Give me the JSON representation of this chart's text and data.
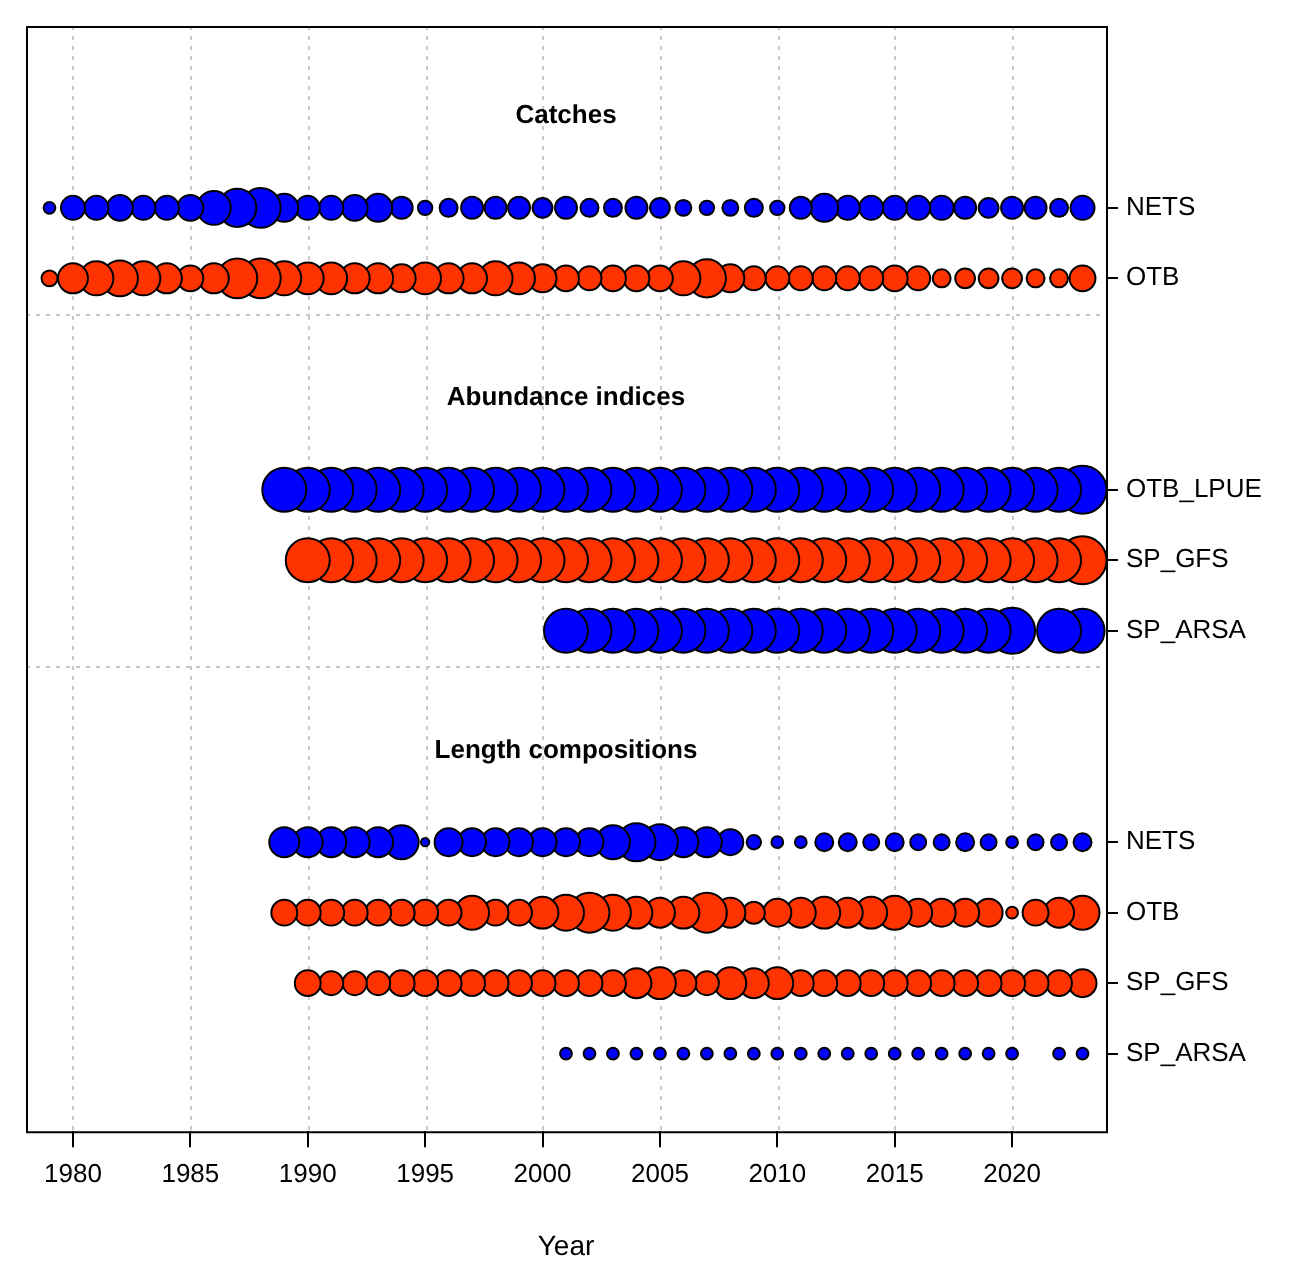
{
  "chart_data": {
    "type": "bubble",
    "orientation": "horizontal",
    "xlabel": "Year",
    "xlim": [
      1978,
      2024
    ],
    "xticks": [
      1980,
      1985,
      1990,
      1995,
      2000,
      2005,
      2010,
      2015,
      2020
    ],
    "grid": "x",
    "marker": "circle",
    "categories": [
      null,
      null,
      "NETS",
      "OTB",
      null,
      null,
      "OTB_LPUE",
      "SP_GFS",
      "SP_ARSA",
      null,
      null,
      "NETS",
      "OTB",
      "SP_GFS",
      "SP_ARSA"
    ],
    "annotations": [
      "Catches",
      "Abundance indices",
      "Length compositions"
    ],
    "series": [
      {
        "values": [
          null,
          null,
          1979,
          1979,
          null,
          null,
          null,
          null,
          null,
          null,
          null,
          null,
          null,
          null,
          null
        ],
        "sizes": [
          null,
          null,
          0.06,
          0.11,
          null,
          null,
          null,
          null,
          null,
          null,
          null,
          null,
          null,
          null,
          null
        ],
        "colors": [
          null,
          null,
          "#0000ff",
          "#ff3300",
          null,
          null,
          null,
          null,
          null,
          null,
          null,
          null,
          null,
          null,
          null
        ]
      },
      {
        "values": [
          null,
          null,
          1980,
          1980,
          null,
          null,
          null,
          null,
          null,
          null,
          null,
          null,
          null,
          null,
          null
        ],
        "sizes": [
          null,
          null,
          0.25,
          0.39,
          null,
          null,
          null,
          null,
          null,
          null,
          null,
          null,
          null,
          null,
          null
        ],
        "colors": [
          null,
          null,
          "#0000ff",
          "#ff3300",
          null,
          null,
          null,
          null,
          null,
          null,
          null,
          null,
          null,
          null,
          null
        ]
      },
      {
        "values": [
          null,
          null,
          1981,
          1981,
          null,
          null,
          null,
          null,
          null,
          null,
          null,
          null,
          null,
          null,
          null
        ],
        "sizes": [
          null,
          null,
          0.25,
          0.5,
          null,
          null,
          null,
          null,
          null,
          null,
          null,
          null,
          null,
          null,
          null
        ],
        "colors": [
          null,
          null,
          "#0000ff",
          "#ff3300",
          null,
          null,
          null,
          null,
          null,
          null,
          null,
          null,
          null,
          null,
          null
        ]
      },
      {
        "values": [
          null,
          null,
          1982,
          1982,
          null,
          null,
          null,
          null,
          null,
          null,
          null,
          null,
          null,
          null,
          null
        ],
        "sizes": [
          null,
          null,
          0.29,
          0.56,
          null,
          null,
          null,
          null,
          null,
          null,
          null,
          null,
          null,
          null,
          null
        ],
        "colors": [
          null,
          null,
          "#0000ff",
          "#ff3300",
          null,
          null,
          null,
          null,
          null,
          null,
          null,
          null,
          null,
          null,
          null
        ]
      },
      {
        "values": [
          null,
          null,
          1983,
          1983,
          null,
          null,
          null,
          null,
          null,
          null,
          null,
          null,
          null,
          null,
          null
        ],
        "sizes": [
          null,
          null,
          0.25,
          0.5,
          null,
          null,
          null,
          null,
          null,
          null,
          null,
          null,
          null,
          null,
          null
        ],
        "colors": [
          null,
          null,
          "#0000ff",
          "#ff3300",
          null,
          null,
          null,
          null,
          null,
          null,
          null,
          null,
          null,
          null,
          null
        ]
      },
      {
        "values": [
          null,
          null,
          1984,
          1984,
          null,
          null,
          null,
          null,
          null,
          null,
          null,
          null,
          null,
          null,
          null
        ],
        "sizes": [
          null,
          null,
          0.25,
          0.39,
          null,
          null,
          null,
          null,
          null,
          null,
          null,
          null,
          null,
          null,
          null
        ],
        "colors": [
          null,
          null,
          "#0000ff",
          "#ff3300",
          null,
          null,
          null,
          null,
          null,
          null,
          null,
          null,
          null,
          null,
          null
        ]
      },
      {
        "values": [
          null,
          null,
          1985,
          1985,
          null,
          null,
          null,
          null,
          null,
          null,
          null,
          null,
          null,
          null,
          null
        ],
        "sizes": [
          null,
          null,
          0.29,
          0.29,
          null,
          null,
          null,
          null,
          null,
          null,
          null,
          null,
          null,
          null,
          null
        ],
        "colors": [
          null,
          null,
          "#0000ff",
          "#ff3300",
          null,
          null,
          null,
          null,
          null,
          null,
          null,
          null,
          null,
          null,
          null
        ]
      },
      {
        "values": [
          null,
          null,
          1986,
          1986,
          null,
          null,
          null,
          null,
          null,
          null,
          null,
          null,
          null,
          null,
          null
        ],
        "sizes": [
          null,
          null,
          0.5,
          0.39,
          null,
          null,
          null,
          null,
          null,
          null,
          null,
          null,
          null,
          null,
          null
        ],
        "colors": [
          null,
          null,
          "#0000ff",
          "#ff3300",
          null,
          null,
          null,
          null,
          null,
          null,
          null,
          null,
          null,
          null,
          null
        ]
      },
      {
        "values": [
          null,
          null,
          1987,
          1987,
          null,
          null,
          null,
          null,
          null,
          null,
          null,
          null,
          null,
          null,
          null
        ],
        "sizes": [
          null,
          null,
          0.63,
          0.69,
          null,
          null,
          null,
          null,
          null,
          null,
          null,
          null,
          null,
          null,
          null
        ],
        "colors": [
          null,
          null,
          "#0000ff",
          "#ff3300",
          null,
          null,
          null,
          null,
          null,
          null,
          null,
          null,
          null,
          null,
          null
        ]
      },
      {
        "values": [
          null,
          null,
          1988,
          1988,
          null,
          null,
          null,
          null,
          null,
          null,
          null,
          null,
          null,
          null,
          null
        ],
        "sizes": [
          null,
          null,
          0.69,
          0.69,
          null,
          null,
          null,
          null,
          null,
          null,
          null,
          null,
          null,
          null,
          null
        ],
        "colors": [
          null,
          null,
          "#0000ff",
          "#ff3300",
          null,
          null,
          null,
          null,
          null,
          null,
          null,
          null,
          null,
          null,
          null
        ]
      },
      {
        "values": [
          null,
          null,
          1989,
          1989,
          null,
          null,
          1989,
          null,
          null,
          null,
          null,
          1989,
          1989,
          null,
          null
        ],
        "sizes": [
          null,
          null,
          0.34,
          0.5,
          null,
          null,
          0.84,
          null,
          null,
          null,
          null,
          0.39,
          0.29,
          null,
          null
        ],
        "colors": [
          null,
          null,
          "#0000ff",
          "#ff3300",
          null,
          null,
          "#0000ff",
          null,
          null,
          null,
          null,
          "#0000ff",
          "#ff3300",
          null,
          null
        ]
      },
      {
        "values": [
          null,
          null,
          1990,
          1990,
          null,
          null,
          1990,
          1990,
          null,
          null,
          null,
          1990,
          1990,
          1990,
          null
        ],
        "sizes": [
          null,
          null,
          0.25,
          0.44,
          null,
          null,
          0.84,
          0.84,
          null,
          null,
          null,
          0.39,
          0.29,
          0.29,
          null
        ],
        "colors": [
          null,
          null,
          "#0000ff",
          "#ff3300",
          null,
          null,
          "#0000ff",
          "#ff3300",
          null,
          null,
          null,
          "#0000ff",
          "#ff3300",
          "#ff3300",
          null
        ]
      },
      {
        "values": [
          null,
          null,
          1991,
          1991,
          null,
          null,
          1991,
          1991,
          null,
          null,
          null,
          1991,
          1991,
          1991,
          null
        ],
        "sizes": [
          null,
          null,
          0.25,
          0.44,
          null,
          null,
          0.84,
          0.84,
          null,
          null,
          null,
          0.39,
          0.29,
          0.25,
          null
        ],
        "colors": [
          null,
          null,
          "#0000ff",
          "#ff3300",
          null,
          null,
          "#0000ff",
          "#ff3300",
          null,
          null,
          null,
          "#0000ff",
          "#ff3300",
          "#ff3300",
          null
        ]
      },
      {
        "values": [
          null,
          null,
          1992,
          1992,
          null,
          null,
          1992,
          1992,
          null,
          null,
          null,
          1992,
          1992,
          1992,
          null
        ],
        "sizes": [
          null,
          null,
          0.29,
          0.39,
          null,
          null,
          0.84,
          0.84,
          null,
          null,
          null,
          0.39,
          0.29,
          0.25,
          null
        ],
        "colors": [
          null,
          null,
          "#0000ff",
          "#ff3300",
          null,
          null,
          "#0000ff",
          "#ff3300",
          null,
          null,
          null,
          "#0000ff",
          "#ff3300",
          "#ff3300",
          null
        ]
      },
      {
        "values": [
          null,
          null,
          1993,
          1993,
          null,
          null,
          1993,
          1993,
          null,
          null,
          null,
          1993,
          1993,
          1993,
          null
        ],
        "sizes": [
          null,
          null,
          0.34,
          0.39,
          null,
          null,
          0.84,
          0.84,
          null,
          null,
          null,
          0.39,
          0.29,
          0.25,
          null
        ],
        "colors": [
          null,
          null,
          "#0000ff",
          "#ff3300",
          null,
          null,
          "#0000ff",
          "#ff3300",
          null,
          null,
          null,
          "#0000ff",
          "#ff3300",
          "#ff3300",
          null
        ]
      },
      {
        "values": [
          null,
          null,
          1994,
          1994,
          null,
          null,
          1994,
          1994,
          null,
          null,
          null,
          1994,
          1994,
          1994,
          null
        ],
        "sizes": [
          null,
          null,
          0.21,
          0.34,
          null,
          null,
          0.84,
          0.84,
          null,
          null,
          null,
          0.5,
          0.29,
          0.29,
          null
        ],
        "colors": [
          null,
          null,
          "#0000ff",
          "#ff3300",
          null,
          null,
          "#0000ff",
          "#ff3300",
          null,
          null,
          null,
          "#0000ff",
          "#ff3300",
          "#ff3300",
          null
        ]
      },
      {
        "values": [
          null,
          null,
          1995,
          1995,
          null,
          null,
          1995,
          1995,
          null,
          null,
          null,
          1995,
          1995,
          1995,
          null
        ],
        "sizes": [
          null,
          null,
          0.09,
          0.44,
          null,
          null,
          0.84,
          0.84,
          null,
          null,
          null,
          0.03,
          0.29,
          0.29,
          null
        ],
        "colors": [
          null,
          null,
          "#0000ff",
          "#ff3300",
          null,
          null,
          "#0000ff",
          "#ff3300",
          null,
          null,
          null,
          "#0000ff",
          "#ff3300",
          "#ff3300",
          null
        ]
      },
      {
        "values": [
          null,
          null,
          1996,
          1996,
          null,
          null,
          1996,
          1996,
          null,
          null,
          null,
          1996,
          1996,
          1996,
          null
        ],
        "sizes": [
          null,
          null,
          0.14,
          0.39,
          null,
          null,
          0.84,
          0.84,
          null,
          null,
          null,
          0.34,
          0.29,
          0.29,
          null
        ],
        "colors": [
          null,
          null,
          "#0000ff",
          "#ff3300",
          null,
          null,
          "#0000ff",
          "#ff3300",
          null,
          null,
          null,
          "#0000ff",
          "#ff3300",
          "#ff3300",
          null
        ]
      },
      {
        "values": [
          null,
          null,
          1997,
          1997,
          null,
          null,
          1997,
          1997,
          null,
          null,
          null,
          1997,
          1997,
          1997,
          null
        ],
        "sizes": [
          null,
          null,
          0.21,
          0.39,
          null,
          null,
          0.84,
          0.84,
          null,
          null,
          null,
          0.34,
          0.5,
          0.29,
          null
        ],
        "colors": [
          null,
          null,
          "#0000ff",
          "#ff3300",
          null,
          null,
          "#0000ff",
          "#ff3300",
          null,
          null,
          null,
          "#0000ff",
          "#ff3300",
          "#ff3300",
          null
        ]
      },
      {
        "values": [
          null,
          null,
          1998,
          1998,
          null,
          null,
          1998,
          1998,
          null,
          null,
          null,
          1998,
          1998,
          1998,
          null
        ],
        "sizes": [
          null,
          null,
          0.21,
          0.5,
          null,
          null,
          0.84,
          0.84,
          null,
          null,
          null,
          0.34,
          0.29,
          0.29,
          null
        ],
        "colors": [
          null,
          null,
          "#0000ff",
          "#ff3300",
          null,
          null,
          "#0000ff",
          "#ff3300",
          null,
          null,
          null,
          "#0000ff",
          "#ff3300",
          "#ff3300",
          null
        ]
      },
      {
        "values": [
          null,
          null,
          1999,
          1999,
          null,
          null,
          1999,
          1999,
          null,
          null,
          null,
          1999,
          1999,
          1999,
          null
        ],
        "sizes": [
          null,
          null,
          0.21,
          0.44,
          null,
          null,
          0.84,
          0.84,
          null,
          null,
          null,
          0.34,
          0.29,
          0.29,
          null
        ],
        "colors": [
          null,
          null,
          "#0000ff",
          "#ff3300",
          null,
          null,
          "#0000ff",
          "#ff3300",
          null,
          null,
          null,
          "#0000ff",
          "#ff3300",
          "#ff3300",
          null
        ]
      },
      {
        "values": [
          null,
          null,
          2000,
          2000,
          null,
          null,
          2000,
          2000,
          null,
          null,
          null,
          2000,
          2000,
          2000,
          null
        ],
        "sizes": [
          null,
          null,
          0.17,
          0.34,
          null,
          null,
          0.84,
          0.84,
          null,
          null,
          null,
          0.34,
          0.44,
          0.29,
          null
        ],
        "colors": [
          null,
          null,
          "#0000ff",
          "#ff3300",
          null,
          null,
          "#0000ff",
          "#ff3300",
          null,
          null,
          null,
          "#0000ff",
          "#ff3300",
          "#ff3300",
          null
        ]
      },
      {
        "values": [
          null,
          null,
          2001,
          2001,
          null,
          null,
          2001,
          2001,
          2001,
          null,
          null,
          2001,
          2001,
          2001,
          2001
        ],
        "sizes": [
          null,
          null,
          0.21,
          0.29,
          null,
          null,
          0.84,
          0.84,
          0.84,
          null,
          null,
          0.34,
          0.56,
          0.29,
          0.06
        ],
        "colors": [
          null,
          null,
          "#0000ff",
          "#ff3300",
          null,
          null,
          "#0000ff",
          "#ff3300",
          "#0000ff",
          null,
          null,
          "#0000ff",
          "#ff3300",
          "#ff3300",
          "#0000ff"
        ]
      },
      {
        "values": [
          null,
          null,
          2002,
          2002,
          null,
          null,
          2002,
          2002,
          2002,
          null,
          null,
          2002,
          2002,
          2002,
          2002
        ],
        "sizes": [
          null,
          null,
          0.14,
          0.25,
          null,
          null,
          0.84,
          0.84,
          0.84,
          null,
          null,
          0.34,
          0.69,
          0.29,
          0.06
        ],
        "colors": [
          null,
          null,
          "#0000ff",
          "#ff3300",
          null,
          null,
          "#0000ff",
          "#ff3300",
          "#0000ff",
          null,
          null,
          "#0000ff",
          "#ff3300",
          "#ff3300",
          "#0000ff"
        ]
      },
      {
        "values": [
          null,
          null,
          2003,
          2003,
          null,
          null,
          2003,
          2003,
          2003,
          null,
          null,
          2003,
          2003,
          2003,
          2003
        ],
        "sizes": [
          null,
          null,
          0.14,
          0.29,
          null,
          null,
          0.84,
          0.84,
          0.84,
          null,
          null,
          0.5,
          0.56,
          0.29,
          0.06
        ],
        "colors": [
          null,
          null,
          "#0000ff",
          "#ff3300",
          null,
          null,
          "#0000ff",
          "#ff3300",
          "#0000ff",
          null,
          null,
          "#0000ff",
          "#ff3300",
          "#ff3300",
          "#0000ff"
        ]
      },
      {
        "values": [
          null,
          null,
          2004,
          2004,
          null,
          null,
          2004,
          2004,
          2004,
          null,
          null,
          2004,
          2004,
          2004,
          2004
        ],
        "sizes": [
          null,
          null,
          0.21,
          0.29,
          null,
          null,
          0.84,
          0.84,
          0.84,
          null,
          null,
          0.63,
          0.44,
          0.39,
          0.06
        ],
        "colors": [
          null,
          null,
          "#0000ff",
          "#ff3300",
          null,
          null,
          "#0000ff",
          "#ff3300",
          "#0000ff",
          null,
          null,
          "#0000ff",
          "#ff3300",
          "#ff3300",
          "#0000ff"
        ]
      },
      {
        "values": [
          null,
          null,
          2005,
          2005,
          null,
          null,
          2005,
          2005,
          2005,
          null,
          null,
          2005,
          2005,
          2005,
          2005
        ],
        "sizes": [
          null,
          null,
          0.17,
          0.29,
          null,
          null,
          0.84,
          0.84,
          0.84,
          null,
          null,
          0.56,
          0.39,
          0.44,
          0.06
        ],
        "colors": [
          null,
          null,
          "#0000ff",
          "#ff3300",
          null,
          null,
          "#0000ff",
          "#ff3300",
          "#0000ff",
          null,
          null,
          "#0000ff",
          "#ff3300",
          "#ff3300",
          "#0000ff"
        ]
      },
      {
        "values": [
          null,
          null,
          2006,
          2006,
          null,
          null,
          2006,
          2006,
          2006,
          null,
          null,
          2006,
          2006,
          2006,
          2006
        ],
        "sizes": [
          null,
          null,
          0.11,
          0.5,
          null,
          null,
          0.84,
          0.84,
          0.84,
          null,
          null,
          0.39,
          0.44,
          0.29,
          0.06
        ],
        "colors": [
          null,
          null,
          "#0000ff",
          "#ff3300",
          null,
          null,
          "#0000ff",
          "#ff3300",
          "#0000ff",
          null,
          null,
          "#0000ff",
          "#ff3300",
          "#ff3300",
          "#0000ff"
        ]
      },
      {
        "values": [
          null,
          null,
          2007,
          2007,
          null,
          null,
          2007,
          2007,
          2007,
          null,
          null,
          2007,
          2007,
          2007,
          2007
        ],
        "sizes": [
          null,
          null,
          0.09,
          0.63,
          null,
          null,
          0.84,
          0.84,
          0.84,
          null,
          null,
          0.39,
          0.69,
          0.25,
          0.06
        ],
        "colors": [
          null,
          null,
          "#0000ff",
          "#ff3300",
          null,
          null,
          "#0000ff",
          "#ff3300",
          "#0000ff",
          null,
          null,
          "#0000ff",
          "#ff3300",
          "#ff3300",
          "#0000ff"
        ]
      },
      {
        "values": [
          null,
          null,
          2008,
          2008,
          null,
          null,
          2008,
          2008,
          2008,
          null,
          null,
          2008,
          2008,
          2008,
          2008
        ],
        "sizes": [
          null,
          null,
          0.11,
          0.34,
          null,
          null,
          0.84,
          0.84,
          0.84,
          null,
          null,
          0.29,
          0.39,
          0.44,
          0.06
        ],
        "colors": [
          null,
          null,
          "#0000ff",
          "#ff3300",
          null,
          null,
          "#0000ff",
          "#ff3300",
          "#0000ff",
          null,
          null,
          "#0000ff",
          "#ff3300",
          "#ff3300",
          "#0000ff"
        ]
      },
      {
        "values": [
          null,
          null,
          2009,
          2009,
          null,
          null,
          2009,
          2009,
          2009,
          null,
          null,
          2009,
          2009,
          2009,
          2009
        ],
        "sizes": [
          null,
          null,
          0.14,
          0.25,
          null,
          null,
          0.84,
          0.84,
          0.84,
          null,
          null,
          0.09,
          0.21,
          0.39,
          0.06
        ],
        "colors": [
          null,
          null,
          "#0000ff",
          "#ff3300",
          null,
          null,
          "#0000ff",
          "#ff3300",
          "#0000ff",
          null,
          null,
          "#0000ff",
          "#ff3300",
          "#ff3300",
          "#0000ff"
        ]
      },
      {
        "values": [
          null,
          null,
          2010,
          2010,
          null,
          null,
          2010,
          2010,
          2010,
          null,
          null,
          2010,
          2010,
          2010,
          2010
        ],
        "sizes": [
          null,
          null,
          0.09,
          0.25,
          null,
          null,
          0.84,
          0.84,
          0.84,
          null,
          null,
          0.06,
          0.34,
          0.44,
          0.06
        ],
        "colors": [
          null,
          null,
          "#0000ff",
          "#ff3300",
          null,
          null,
          "#0000ff",
          "#ff3300",
          "#0000ff",
          null,
          null,
          "#0000ff",
          "#ff3300",
          "#ff3300",
          "#0000ff"
        ]
      },
      {
        "values": [
          null,
          null,
          2011,
          2011,
          null,
          null,
          2011,
          2011,
          2011,
          null,
          null,
          2011,
          2011,
          2011,
          2011
        ],
        "sizes": [
          null,
          null,
          0.21,
          0.25,
          null,
          null,
          0.84,
          0.84,
          0.84,
          null,
          null,
          0.06,
          0.39,
          0.29,
          0.06
        ],
        "colors": [
          null,
          null,
          "#0000ff",
          "#ff3300",
          null,
          null,
          "#0000ff",
          "#ff3300",
          "#0000ff",
          null,
          null,
          "#0000ff",
          "#ff3300",
          "#ff3300",
          "#0000ff"
        ]
      },
      {
        "values": [
          null,
          null,
          2012,
          2012,
          null,
          null,
          2012,
          2012,
          2012,
          null,
          null,
          2012,
          2012,
          2012,
          2012
        ],
        "sizes": [
          null,
          null,
          0.34,
          0.25,
          null,
          null,
          0.84,
          0.84,
          0.84,
          null,
          null,
          0.14,
          0.44,
          0.29,
          0.06
        ],
        "colors": [
          null,
          null,
          "#0000ff",
          "#ff3300",
          null,
          null,
          "#0000ff",
          "#ff3300",
          "#0000ff",
          null,
          null,
          "#0000ff",
          "#ff3300",
          "#ff3300",
          "#0000ff"
        ]
      },
      {
        "values": [
          null,
          null,
          2013,
          2013,
          null,
          null,
          2013,
          2013,
          2013,
          null,
          null,
          2013,
          2013,
          2013,
          2013
        ],
        "sizes": [
          null,
          null,
          0.25,
          0.25,
          null,
          null,
          0.84,
          0.84,
          0.84,
          null,
          null,
          0.14,
          0.39,
          0.29,
          0.06
        ],
        "colors": [
          null,
          null,
          "#0000ff",
          "#ff3300",
          null,
          null,
          "#0000ff",
          "#ff3300",
          "#0000ff",
          null,
          null,
          "#0000ff",
          "#ff3300",
          "#ff3300",
          "#0000ff"
        ]
      },
      {
        "values": [
          null,
          null,
          2014,
          2014,
          null,
          null,
          2014,
          2014,
          2014,
          null,
          null,
          2014,
          2014,
          2014,
          2014
        ],
        "sizes": [
          null,
          null,
          0.25,
          0.25,
          null,
          null,
          0.84,
          0.84,
          0.84,
          null,
          null,
          0.11,
          0.44,
          0.29,
          0.06
        ],
        "colors": [
          null,
          null,
          "#0000ff",
          "#ff3300",
          null,
          null,
          "#0000ff",
          "#ff3300",
          "#0000ff",
          null,
          null,
          "#0000ff",
          "#ff3300",
          "#ff3300",
          "#0000ff"
        ]
      },
      {
        "values": [
          null,
          null,
          2015,
          2015,
          null,
          null,
          2015,
          2015,
          2015,
          null,
          null,
          2015,
          2015,
          2015,
          2015
        ],
        "sizes": [
          null,
          null,
          0.25,
          0.29,
          null,
          null,
          0.84,
          0.84,
          0.84,
          null,
          null,
          0.14,
          0.5,
          0.29,
          0.06
        ],
        "colors": [
          null,
          null,
          "#0000ff",
          "#ff3300",
          null,
          null,
          "#0000ff",
          "#ff3300",
          "#0000ff",
          null,
          null,
          "#0000ff",
          "#ff3300",
          "#ff3300",
          "#0000ff"
        ]
      },
      {
        "values": [
          null,
          null,
          2016,
          2016,
          null,
          null,
          2016,
          2016,
          2016,
          null,
          null,
          2016,
          2016,
          2016,
          2016
        ],
        "sizes": [
          null,
          null,
          0.25,
          0.25,
          null,
          null,
          0.84,
          0.84,
          0.84,
          null,
          null,
          0.11,
          0.34,
          0.29,
          0.06
        ],
        "colors": [
          null,
          null,
          "#0000ff",
          "#ff3300",
          null,
          null,
          "#0000ff",
          "#ff3300",
          "#0000ff",
          null,
          null,
          "#0000ff",
          "#ff3300",
          "#ff3300",
          "#0000ff"
        ]
      },
      {
        "values": [
          null,
          null,
          2017,
          2017,
          null,
          null,
          2017,
          2017,
          2017,
          null,
          null,
          2017,
          2017,
          2017,
          2017
        ],
        "sizes": [
          null,
          null,
          0.25,
          0.14,
          null,
          null,
          0.84,
          0.84,
          0.84,
          null,
          null,
          0.11,
          0.34,
          0.29,
          0.06
        ],
        "colors": [
          null,
          null,
          "#0000ff",
          "#ff3300",
          null,
          null,
          "#0000ff",
          "#ff3300",
          "#0000ff",
          null,
          null,
          "#0000ff",
          "#ff3300",
          "#ff3300",
          "#0000ff"
        ]
      },
      {
        "values": [
          null,
          null,
          2018,
          2018,
          null,
          null,
          2018,
          2018,
          2018,
          null,
          null,
          2018,
          2018,
          2018,
          2018
        ],
        "sizes": [
          null,
          null,
          0.21,
          0.17,
          null,
          null,
          0.84,
          0.84,
          0.84,
          null,
          null,
          0.14,
          0.34,
          0.29,
          0.06
        ],
        "colors": [
          null,
          null,
          "#0000ff",
          "#ff3300",
          null,
          null,
          "#0000ff",
          "#ff3300",
          "#0000ff",
          null,
          null,
          "#0000ff",
          "#ff3300",
          "#ff3300",
          "#0000ff"
        ]
      },
      {
        "values": [
          null,
          null,
          2019,
          2019,
          null,
          null,
          2019,
          2019,
          2019,
          null,
          null,
          2019,
          2019,
          2019,
          2019
        ],
        "sizes": [
          null,
          null,
          0.17,
          0.17,
          null,
          null,
          0.84,
          0.84,
          0.84,
          null,
          null,
          0.11,
          0.34,
          0.29,
          0.06
        ],
        "colors": [
          null,
          null,
          "#0000ff",
          "#ff3300",
          null,
          null,
          "#0000ff",
          "#ff3300",
          "#0000ff",
          null,
          null,
          "#0000ff",
          "#ff3300",
          "#ff3300",
          "#0000ff"
        ]
      },
      {
        "values": [
          null,
          null,
          2020,
          2020,
          null,
          null,
          2020,
          2020,
          2020,
          null,
          null,
          2020,
          2020,
          2020,
          2020
        ],
        "sizes": [
          null,
          null,
          0.21,
          0.17,
          null,
          null,
          0.84,
          0.84,
          0.92,
          null,
          null,
          0.06,
          0.06,
          0.29,
          0.06
        ],
        "colors": [
          null,
          null,
          "#0000ff",
          "#ff3300",
          null,
          null,
          "#0000ff",
          "#ff3300",
          "#0000ff",
          null,
          null,
          "#0000ff",
          "#ff3300",
          "#ff3300",
          "#0000ff"
        ]
      },
      {
        "values": [
          null,
          null,
          2021,
          2021,
          null,
          null,
          2021,
          2021,
          null,
          null,
          null,
          2021,
          2021,
          2021,
          null
        ],
        "sizes": [
          null,
          null,
          0.21,
          0.14,
          null,
          null,
          0.84,
          0.84,
          null,
          null,
          null,
          0.11,
          0.29,
          0.29,
          null
        ],
        "colors": [
          null,
          null,
          "#0000ff",
          "#ff3300",
          null,
          null,
          "#0000ff",
          "#ff3300",
          null,
          null,
          null,
          "#0000ff",
          "#ff3300",
          "#ff3300",
          null
        ]
      },
      {
        "values": [
          null,
          null,
          2022,
          2022,
          null,
          null,
          2022,
          2022,
          2022,
          null,
          null,
          2022,
          2022,
          2022,
          2022
        ],
        "sizes": [
          null,
          null,
          0.14,
          0.14,
          null,
          null,
          0.84,
          0.84,
          0.84,
          null,
          null,
          0.11,
          0.39,
          0.29,
          0.06
        ],
        "colors": [
          null,
          null,
          "#0000ff",
          "#ff3300",
          null,
          null,
          "#0000ff",
          "#ff3300",
          "#0000ff",
          null,
          null,
          "#0000ff",
          "#ff3300",
          "#ff3300",
          "#0000ff"
        ]
      },
      {
        "values": [
          null,
          null,
          2023,
          2023,
          null,
          null,
          2023,
          2023,
          2023,
          null,
          null,
          2023,
          2023,
          2023,
          2023
        ],
        "sizes": [
          null,
          null,
          0.25,
          0.29,
          null,
          null,
          1,
          1,
          0.84,
          null,
          null,
          0.14,
          0.5,
          0.34,
          0.06
        ],
        "colors": [
          null,
          null,
          "#0000ff",
          "#ff3300",
          null,
          null,
          "#0000ff",
          "#ff3300",
          "#0000ff",
          null,
          null,
          "#0000ff",
          "#ff3300",
          "#ff3300",
          "#0000ff"
        ]
      }
    ]
  }
}
